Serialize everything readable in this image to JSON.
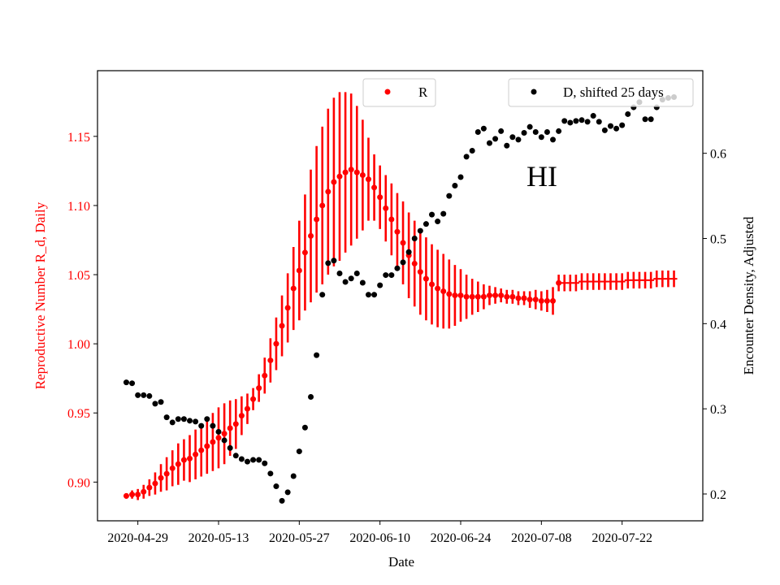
{
  "chart_data": {
    "type": "scatter",
    "title": "",
    "annotation": "HI",
    "xlabel": "Date",
    "ylabel_left": "Reproductive Number R_d, Daily",
    "ylabel_right": "Encounter Density, Adjusted",
    "xlim": [
      "2020-04-22",
      "2020-08-05"
    ],
    "ylim_left": [
      0.872,
      1.1975
    ],
    "ylim_right": [
      0.1685,
      0.697
    ],
    "x_ticks": [
      "2020-04-29",
      "2020-05-13",
      "2020-05-27",
      "2020-06-10",
      "2020-06-24",
      "2020-07-08",
      "2020-07-22"
    ],
    "y_ticks_left": [
      "0.90",
      "0.95",
      "1.00",
      "1.05",
      "1.10",
      "1.15"
    ],
    "y_ticks_right": [
      "0.2",
      "0.3",
      "0.4",
      "0.5",
      "0.6"
    ],
    "grid": false,
    "colors": {
      "R": "#ff0000",
      "D": "#000000"
    },
    "legend": [
      {
        "label": "R",
        "placement": "upper-center",
        "color": "#ff0000"
      },
      {
        "label": "D, shifted 25 days",
        "placement": "upper-right",
        "color": "#000000"
      }
    ],
    "x": [
      "2020-04-27",
      "2020-04-28",
      "2020-04-29",
      "2020-04-30",
      "2020-05-01",
      "2020-05-02",
      "2020-05-03",
      "2020-05-04",
      "2020-05-05",
      "2020-05-06",
      "2020-05-07",
      "2020-05-08",
      "2020-05-09",
      "2020-05-10",
      "2020-05-11",
      "2020-05-12",
      "2020-05-13",
      "2020-05-14",
      "2020-05-15",
      "2020-05-16",
      "2020-05-17",
      "2020-05-18",
      "2020-05-19",
      "2020-05-20",
      "2020-05-21",
      "2020-05-22",
      "2020-05-23",
      "2020-05-24",
      "2020-05-25",
      "2020-05-26",
      "2020-05-27",
      "2020-05-28",
      "2020-05-29",
      "2020-05-30",
      "2020-05-31",
      "2020-06-01",
      "2020-06-02",
      "2020-06-03",
      "2020-06-04",
      "2020-06-05",
      "2020-06-06",
      "2020-06-07",
      "2020-06-08",
      "2020-06-09",
      "2020-06-10",
      "2020-06-11",
      "2020-06-12",
      "2020-06-13",
      "2020-06-14",
      "2020-06-15",
      "2020-06-16",
      "2020-06-17",
      "2020-06-18",
      "2020-06-19",
      "2020-06-20",
      "2020-06-21",
      "2020-06-22",
      "2020-06-23",
      "2020-06-24",
      "2020-06-25",
      "2020-06-26",
      "2020-06-27",
      "2020-06-28",
      "2020-06-29",
      "2020-06-30",
      "2020-07-01",
      "2020-07-02",
      "2020-07-03",
      "2020-07-04",
      "2020-07-05",
      "2020-07-06",
      "2020-07-07",
      "2020-07-08",
      "2020-07-09",
      "2020-07-10",
      "2020-07-11",
      "2020-07-12",
      "2020-07-13",
      "2020-07-14",
      "2020-07-15",
      "2020-07-16",
      "2020-07-17",
      "2020-07-18",
      "2020-07-19",
      "2020-07-20",
      "2020-07-21",
      "2020-07-22",
      "2020-07-23",
      "2020-07-24",
      "2020-07-25",
      "2020-07-26",
      "2020-07-27",
      "2020-07-28",
      "2020-07-29",
      "2020-07-30",
      "2020-07-31"
    ],
    "series": [
      {
        "name": "R",
        "axis": "left",
        "marker": "o",
        "dot_marker_until": "2020-07-11",
        "after_marker": "_",
        "values": [
          0.89,
          0.891,
          0.891,
          0.893,
          0.896,
          0.899,
          0.903,
          0.906,
          0.91,
          0.913,
          0.916,
          0.917,
          0.92,
          0.923,
          0.926,
          0.929,
          0.932,
          0.935,
          0.939,
          0.942,
          0.948,
          0.953,
          0.96,
          0.968,
          0.977,
          0.988,
          1.0,
          1.013,
          1.026,
          1.04,
          1.053,
          1.066,
          1.078,
          1.09,
          1.1,
          1.11,
          1.117,
          1.121,
          1.124,
          1.126,
          1.124,
          1.122,
          1.119,
          1.113,
          1.106,
          1.098,
          1.09,
          1.081,
          1.073,
          1.064,
          1.058,
          1.052,
          1.047,
          1.043,
          1.04,
          1.038,
          1.036,
          1.035,
          1.035,
          1.034,
          1.034,
          1.034,
          1.034,
          1.035,
          1.035,
          1.035,
          1.034,
          1.034,
          1.033,
          1.033,
          1.032,
          1.032,
          1.031,
          1.031,
          1.031,
          1.044,
          1.044,
          1.044,
          1.044,
          1.045,
          1.045,
          1.045,
          1.045,
          1.045,
          1.045,
          1.045,
          1.045,
          1.046,
          1.046,
          1.046,
          1.046,
          1.046,
          1.047,
          1.047,
          1.047,
          1.047
        ],
        "err": [
          0.002,
          0.003,
          0.004,
          0.005,
          0.006,
          0.008,
          0.01,
          0.012,
          0.013,
          0.015,
          0.015,
          0.017,
          0.018,
          0.019,
          0.02,
          0.021,
          0.022,
          0.022,
          0.02,
          0.018,
          0.014,
          0.011,
          0.008,
          0.01,
          0.013,
          0.016,
          0.019,
          0.022,
          0.025,
          0.03,
          0.036,
          0.042,
          0.048,
          0.053,
          0.057,
          0.06,
          0.061,
          0.061,
          0.058,
          0.055,
          0.048,
          0.04,
          0.03,
          0.024,
          0.023,
          0.024,
          0.026,
          0.028,
          0.03,
          0.031,
          0.031,
          0.031,
          0.03,
          0.029,
          0.028,
          0.027,
          0.025,
          0.022,
          0.019,
          0.016,
          0.013,
          0.011,
          0.009,
          0.007,
          0.006,
          0.005,
          0.005,
          0.005,
          0.005,
          0.005,
          0.006,
          0.007,
          0.007,
          0.008,
          0.01,
          0.006,
          0.006,
          0.006,
          0.006,
          0.006,
          0.006,
          0.006,
          0.006,
          0.006,
          0.006,
          0.006,
          0.006,
          0.006,
          0.006,
          0.006,
          0.006,
          0.006,
          0.006,
          0.006,
          0.006,
          0.006
        ]
      },
      {
        "name": "D, shifted 25 days",
        "axis": "right",
        "marker": "o",
        "values": [
          0.331,
          0.33,
          0.316,
          0.316,
          0.315,
          0.306,
          0.308,
          0.29,
          0.284,
          0.288,
          0.288,
          0.286,
          0.285,
          0.28,
          0.288,
          0.28,
          0.273,
          0.263,
          0.254,
          0.245,
          0.241,
          0.238,
          0.24,
          0.24,
          0.236,
          0.224,
          0.209,
          0.192,
          0.202,
          0.221,
          0.25,
          0.278,
          0.314,
          0.363,
          0.434,
          0.471,
          0.474,
          0.459,
          0.449,
          0.453,
          0.459,
          0.448,
          0.434,
          0.434,
          0.445,
          0.457,
          0.457,
          0.465,
          0.472,
          0.484,
          0.5,
          0.509,
          0.517,
          0.528,
          0.52,
          0.529,
          0.55,
          0.562,
          0.572,
          0.596,
          0.603,
          0.625,
          0.629,
          0.612,
          0.617,
          0.626,
          0.609,
          0.619,
          0.616,
          0.624,
          0.631,
          0.625,
          0.619,
          0.625,
          0.616,
          0.626,
          0.638,
          0.636,
          0.638,
          0.639,
          0.637,
          0.644,
          0.637,
          0.627,
          0.632,
          0.629,
          0.633,
          0.646,
          0.654,
          0.66,
          0.64,
          0.64,
          0.654,
          0.663,
          0.665,
          0.666
        ]
      }
    ]
  }
}
